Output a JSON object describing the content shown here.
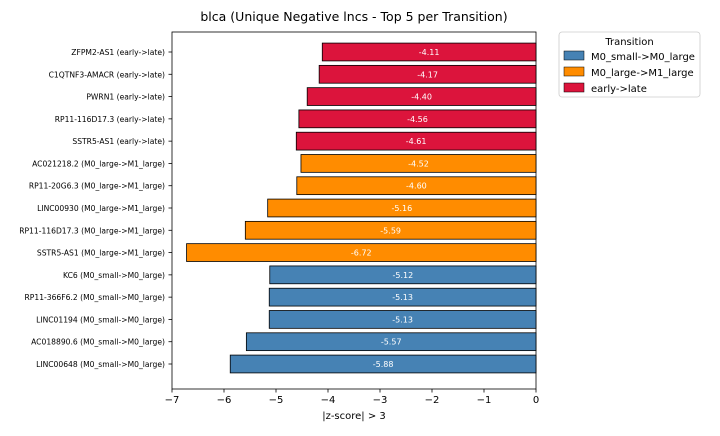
{
  "chart_data": {
    "type": "bar",
    "orientation": "horizontal",
    "title": "blca (Unique Negative lncs - Top 5 per Transition)",
    "xlabel": "|z-score| > 3",
    "ylabel": "",
    "xlim": [
      -7.0,
      0.0
    ],
    "xticks": [
      -7,
      -6,
      -5,
      -4,
      -3,
      -2,
      -1,
      0
    ],
    "xtick_labels": [
      "−7",
      "−6",
      "−5",
      "−4",
      "−3",
      "−2",
      "−1",
      "0"
    ],
    "grid": false,
    "legend": {
      "title": "Transition",
      "placement": "upper-right-outside",
      "entries": [
        {
          "label": "M0_small->M0_large",
          "color": "#4682b4"
        },
        {
          "label": "M0_large->M1_large",
          "color": "#ff8c00"
        },
        {
          "label": "early->late",
          "color": "#dc143c"
        }
      ]
    },
    "bars": [
      {
        "category": "ZFPM2-AS1 (early->late)",
        "value": -4.11,
        "label": "-4.11",
        "group": "early->late"
      },
      {
        "category": "C1QTNF3-AMACR (early->late)",
        "value": -4.17,
        "label": "-4.17",
        "group": "early->late"
      },
      {
        "category": "PWRN1 (early->late)",
        "value": -4.4,
        "label": "-4.40",
        "group": "early->late"
      },
      {
        "category": "RP11-116D17.3 (early->late)",
        "value": -4.56,
        "label": "-4.56",
        "group": "early->late"
      },
      {
        "category": "SSTR5-AS1 (early->late)",
        "value": -4.61,
        "label": "-4.61",
        "group": "early->late"
      },
      {
        "category": "AC021218.2 (M0_large->M1_large)",
        "value": -4.52,
        "label": "-4.52",
        "group": "M0_large->M1_large"
      },
      {
        "category": "RP11-20G6.3 (M0_large->M1_large)",
        "value": -4.6,
        "label": "-4.60",
        "group": "M0_large->M1_large"
      },
      {
        "category": "LINC00930 (M0_large->M1_large)",
        "value": -5.16,
        "label": "-5.16",
        "group": "M0_large->M1_large"
      },
      {
        "category": "RP11-116D17.3 (M0_large->M1_large)",
        "value": -5.59,
        "label": "-5.59",
        "group": "M0_large->M1_large"
      },
      {
        "category": "SSTR5-AS1 (M0_large->M1_large)",
        "value": -6.72,
        "label": "-6.72",
        "group": "M0_large->M1_large"
      },
      {
        "category": "KC6 (M0_small->M0_large)",
        "value": -5.12,
        "label": "-5.12",
        "group": "M0_small->M0_large"
      },
      {
        "category": "RP11-366F6.2 (M0_small->M0_large)",
        "value": -5.13,
        "label": "-5.13",
        "group": "M0_small->M0_large"
      },
      {
        "category": "LINC01194 (M0_small->M0_large)",
        "value": -5.13,
        "label": "-5.13",
        "group": "M0_small->M0_large"
      },
      {
        "category": "AC018890.6 (M0_small->M0_large)",
        "value": -5.57,
        "label": "-5.57",
        "group": "M0_small->M0_large"
      },
      {
        "category": "LINC00648 (M0_small->M0_large)",
        "value": -5.88,
        "label": "-5.88",
        "group": "M0_small->M0_large"
      }
    ]
  }
}
